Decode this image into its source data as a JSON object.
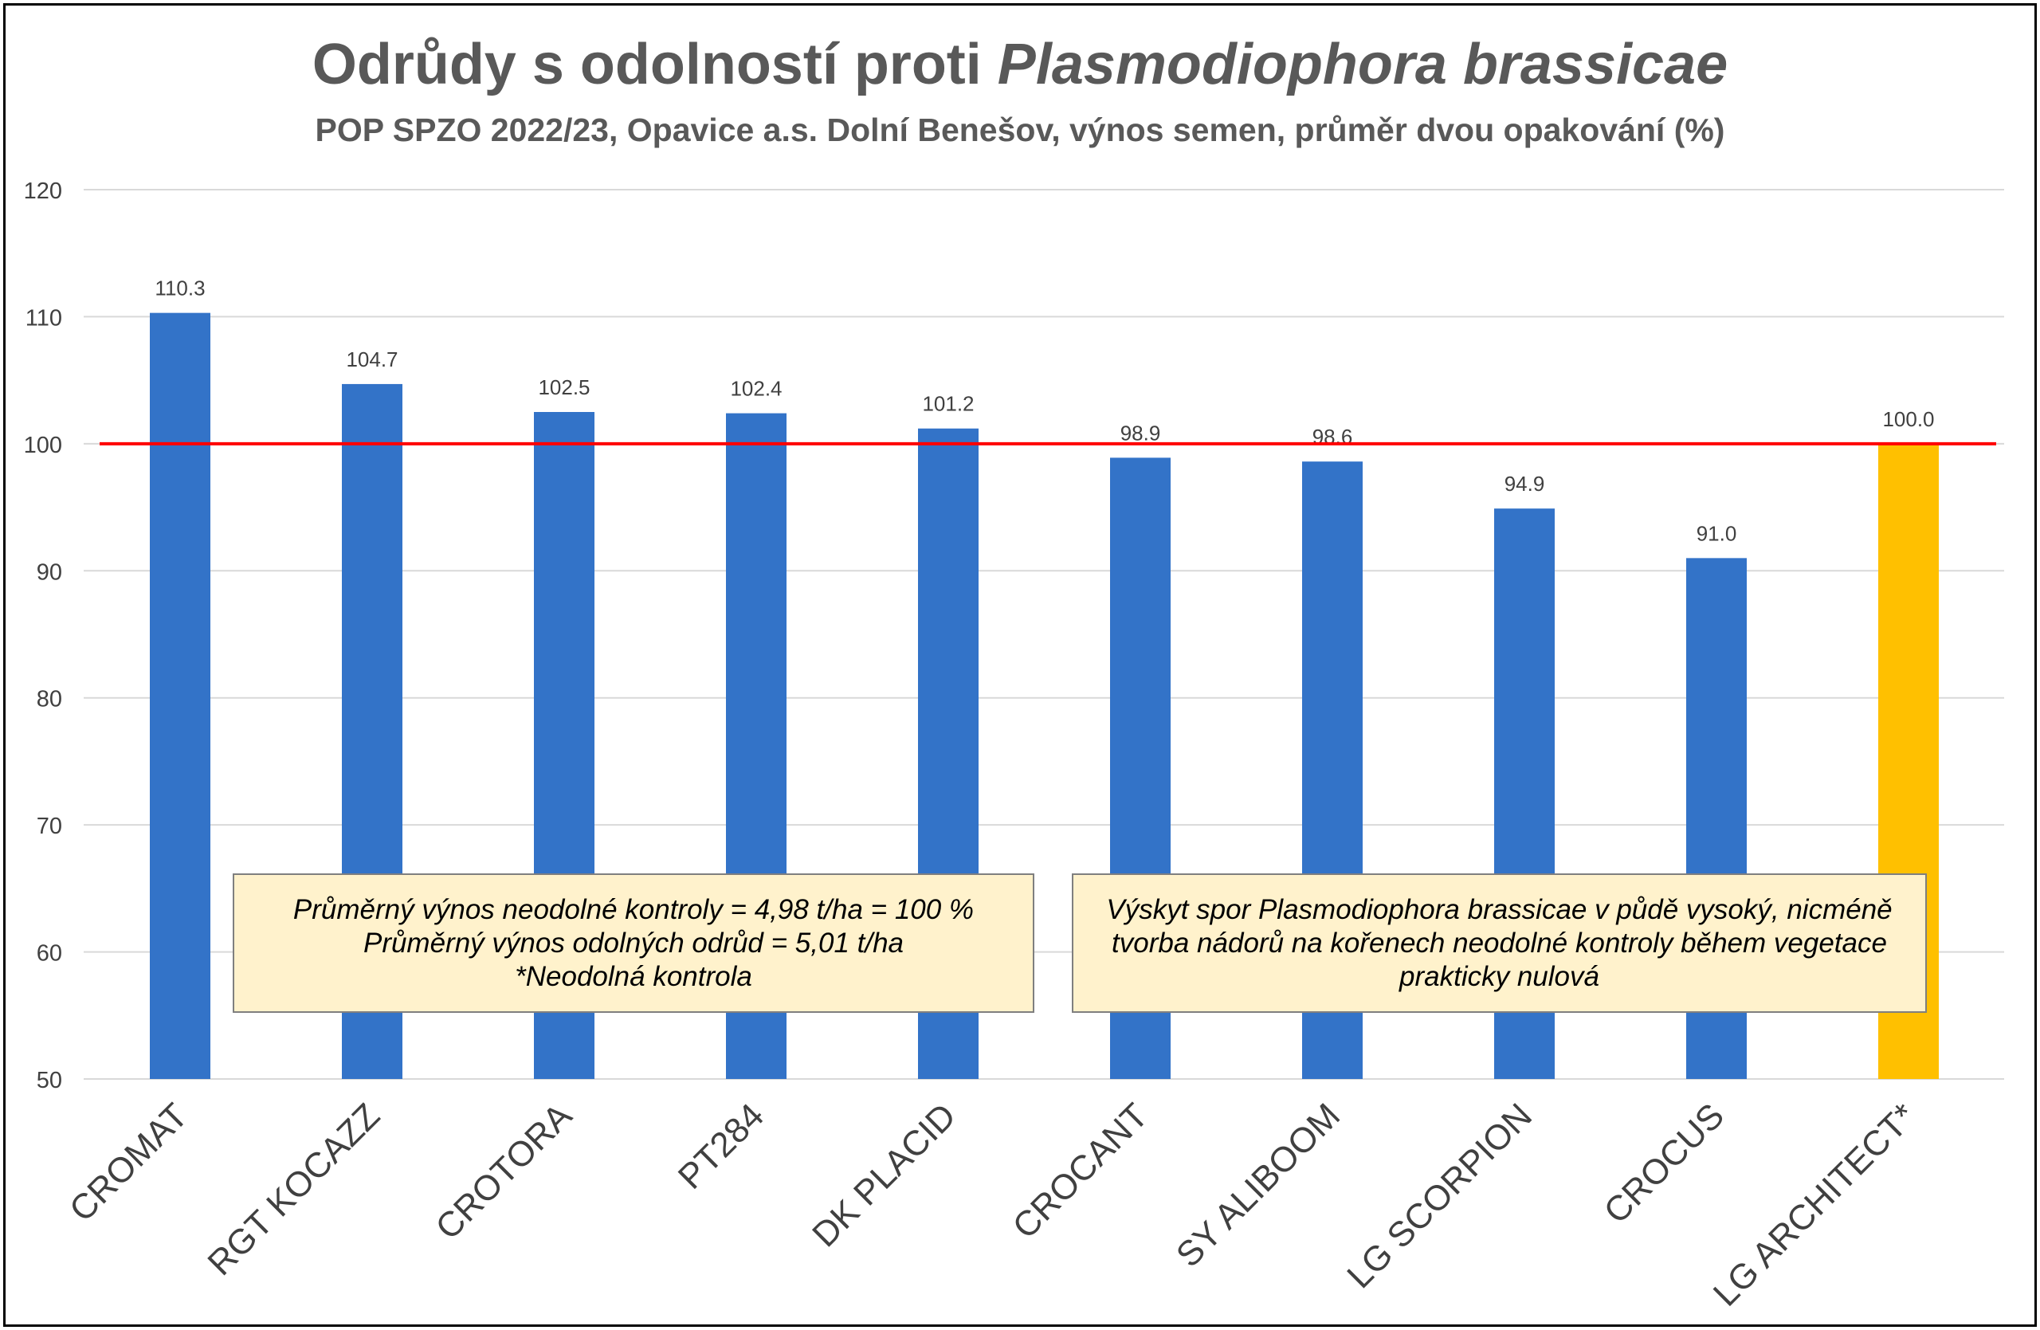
{
  "chart_data": {
    "type": "bar",
    "title_plain": "Odrůdy s odolností proti ",
    "title_italic": "Plasmodiophora brassicae",
    "subtitle": "POP SPZO 2022/23, Opavice a.s. Dolní Benešov, výnos semen, průměr dvou opakování (%)",
    "categories": [
      "CROMAT",
      "RGT KOCAZZ",
      "CROTORA",
      "PT284",
      "DK PLACID",
      "CROCANT",
      "SY ALIBOOM",
      "LG SCORPION",
      "CROCUS",
      "LG ARCHITECT*"
    ],
    "values": [
      110.3,
      104.7,
      102.5,
      102.4,
      101.2,
      98.9,
      98.6,
      94.9,
      91.0,
      100.0
    ],
    "value_labels": [
      "110.3",
      "104.7",
      "102.5",
      "102.4",
      "101.2",
      "98.9",
      "98.6",
      "94.9",
      "91.0",
      "100.0"
    ],
    "highlight_index": 9,
    "ylim": [
      50,
      120
    ],
    "yticks": [
      50,
      60,
      70,
      80,
      90,
      100,
      110,
      120
    ],
    "reference_line": 100,
    "grid": true,
    "colors": {
      "bar": "#3373c8",
      "highlight_bar": "#ffc000",
      "reference_line": "#ff0000",
      "grid": "#d9d9d9",
      "text": "#404040",
      "title": "#595959"
    }
  },
  "notes": {
    "left": [
      "Průměrný výnos neodolné kontroly = 4,98 t/ha = 100 %",
      "Průměrný výnos odolných odrůd = 5,01 t/ha",
      "*Neodolná kontrola"
    ],
    "right": [
      "Výskyt spor Plasmodiophora brassicae v půdě vysoký, nicméně",
      "tvorba nádorů na kořenech neodolné kontroly během vegetace",
      "prakticky nulová"
    ]
  }
}
